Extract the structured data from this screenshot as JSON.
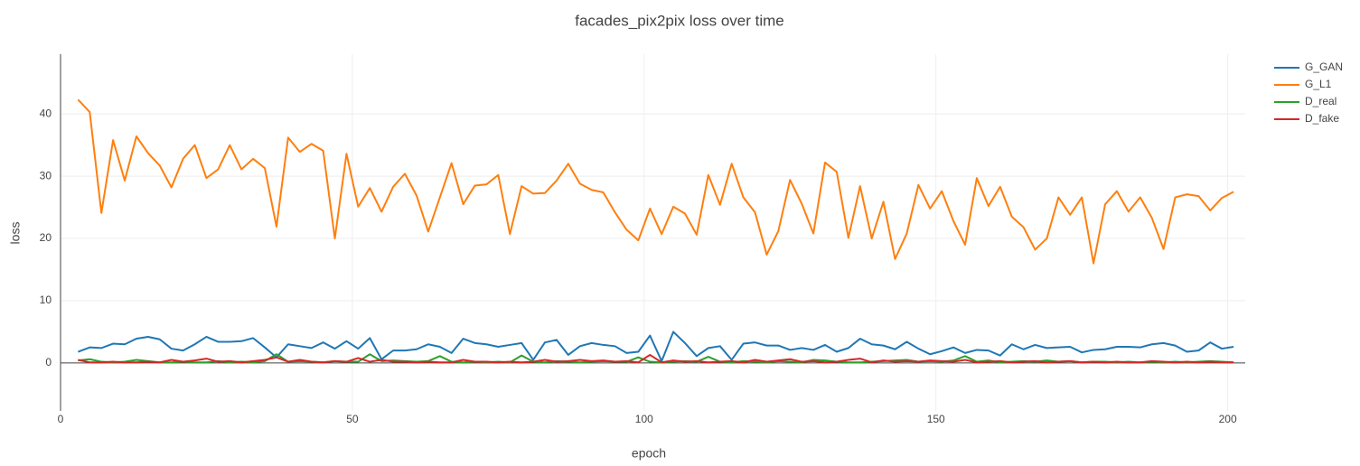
{
  "chart_data": {
    "type": "line",
    "title": "facades_pix2pix loss over time",
    "x_label": "epoch",
    "y_label": "loss",
    "x": [
      3,
      5,
      7,
      9,
      11,
      13,
      15,
      17,
      19,
      21,
      23,
      25,
      27,
      29,
      31,
      33,
      35,
      37,
      39,
      41,
      43,
      45,
      47,
      49,
      51,
      53,
      55,
      57,
      59,
      61,
      63,
      65,
      67,
      69,
      71,
      73,
      75,
      77,
      79,
      81,
      83,
      85,
      87,
      89,
      91,
      93,
      95,
      97,
      99,
      101,
      103,
      105,
      107,
      109,
      111,
      113,
      115,
      117,
      119,
      121,
      123,
      125,
      127,
      129,
      131,
      133,
      135,
      137,
      139,
      141,
      143,
      145,
      147,
      149,
      151,
      153,
      155,
      157,
      159,
      161,
      163,
      165,
      167,
      169,
      171,
      173,
      175,
      177,
      179,
      181,
      183,
      185,
      187,
      189,
      191,
      193,
      195,
      197,
      199,
      201
    ],
    "series": [
      {
        "name": "G_GAN",
        "color": "#1f77b4",
        "values": [
          1.8,
          2.5,
          2.4,
          3.1,
          3.0,
          3.9,
          4.2,
          3.8,
          2.3,
          2.0,
          3.0,
          4.2,
          3.4,
          3.4,
          3.5,
          4.0,
          2.5,
          0.9,
          3.0,
          2.7,
          2.4,
          3.3,
          2.3,
          3.5,
          2.3,
          4.0,
          0.6,
          2.0,
          2.0,
          2.2,
          3.0,
          2.6,
          1.6,
          3.9,
          3.2,
          3.0,
          2.6,
          2.9,
          3.2,
          0.5,
          3.3,
          3.7,
          1.3,
          2.7,
          3.2,
          2.9,
          2.7,
          1.6,
          1.8,
          4.4,
          0.3,
          5.0,
          3.2,
          1.1,
          2.4,
          2.7,
          0.5,
          3.1,
          3.3,
          2.8,
          2.8,
          2.1,
          2.4,
          2.1,
          2.9,
          1.8,
          2.4,
          3.9,
          3.0,
          2.8,
          2.2,
          3.4,
          2.3,
          1.4,
          1.9,
          2.5,
          1.6,
          2.1,
          2.0,
          1.2,
          3.0,
          2.2,
          2.9,
          2.4,
          2.5,
          2.6,
          1.7,
          2.1,
          2.2,
          2.6,
          2.6,
          2.5,
          3.0,
          3.2,
          2.8,
          1.8,
          2.0,
          3.3,
          2.3,
          2.6
        ]
      },
      {
        "name": "G_L1",
        "color": "#ff7f0e",
        "values": [
          42.3,
          40.3,
          24.1,
          35.8,
          29.3,
          36.4,
          33.7,
          31.7,
          28.2,
          32.8,
          35.0,
          29.7,
          31.1,
          35.0,
          31.1,
          32.8,
          31.3,
          21.9,
          36.2,
          33.9,
          35.2,
          34.1,
          20.0,
          33.6,
          25.1,
          28.1,
          24.3,
          28.3,
          30.4,
          26.9,
          21.1,
          26.6,
          32.1,
          25.5,
          28.5,
          28.7,
          30.2,
          20.7,
          28.4,
          27.2,
          27.3,
          29.3,
          32.0,
          28.8,
          27.8,
          27.4,
          24.2,
          21.4,
          19.7,
          24.8,
          20.7,
          25.1,
          24.0,
          20.6,
          30.2,
          25.4,
          32.0,
          26.6,
          24.2,
          17.4,
          21.2,
          29.4,
          25.6,
          20.8,
          32.2,
          30.7,
          20.1,
          28.4,
          20.0,
          25.9,
          16.7,
          20.8,
          28.6,
          24.8,
          27.6,
          22.8,
          19.0,
          29.7,
          25.2,
          28.3,
          23.5,
          21.8,
          18.2,
          20.0,
          26.6,
          23.8,
          26.6,
          16.0,
          25.5,
          27.6,
          24.3,
          26.6,
          23.3,
          18.3,
          26.6,
          27.1,
          26.8,
          24.5,
          26.5,
          27.5
        ]
      },
      {
        "name": "D_real",
        "color": "#2ca02c",
        "values": [
          0.4,
          0.6,
          0.2,
          0.1,
          0.2,
          0.5,
          0.3,
          0.1,
          0.1,
          0.2,
          0.1,
          0.1,
          0.3,
          0.1,
          0.2,
          0.1,
          0.3,
          1.4,
          0.2,
          0.3,
          0.2,
          0.1,
          0.3,
          0.2,
          0.2,
          1.4,
          0.3,
          0.4,
          0.3,
          0.2,
          0.3,
          1.1,
          0.2,
          0.1,
          0.2,
          0.1,
          0.2,
          0.1,
          1.2,
          0.2,
          0.1,
          0.3,
          0.2,
          0.1,
          0.2,
          0.3,
          0.2,
          0.2,
          0.9,
          0.2,
          0.1,
          0.2,
          0.3,
          0.2,
          1.0,
          0.2,
          0.1,
          0.3,
          0.2,
          0.1,
          0.3,
          0.2,
          0.1,
          0.5,
          0.4,
          0.2,
          0.1,
          0.1,
          0.2,
          0.3,
          0.4,
          0.5,
          0.2,
          0.3,
          0.2,
          0.4,
          1.1,
          0.2,
          0.4,
          0.1,
          0.2,
          0.3,
          0.2,
          0.4,
          0.2,
          0.3,
          0.1,
          0.2,
          0.2,
          0.1,
          0.2,
          0.1,
          0.2,
          0.1,
          0.2,
          0.1,
          0.2,
          0.3,
          0.2,
          0.1
        ]
      },
      {
        "name": "D_fake",
        "color": "#d62728",
        "values": [
          0.5,
          0.1,
          0.1,
          0.2,
          0.1,
          0.1,
          0.2,
          0.1,
          0.5,
          0.2,
          0.4,
          0.7,
          0.2,
          0.3,
          0.1,
          0.3,
          0.5,
          0.9,
          0.2,
          0.5,
          0.2,
          0.1,
          0.3,
          0.2,
          0.8,
          0.2,
          0.5,
          0.2,
          0.2,
          0.1,
          0.2,
          0.1,
          0.1,
          0.5,
          0.2,
          0.2,
          0.1,
          0.2,
          0.1,
          0.2,
          0.5,
          0.2,
          0.3,
          0.5,
          0.3,
          0.4,
          0.2,
          0.3,
          0.1,
          1.3,
          0.1,
          0.4,
          0.2,
          0.3,
          0.1,
          0.2,
          0.3,
          0.1,
          0.5,
          0.2,
          0.4,
          0.6,
          0.2,
          0.3,
          0.1,
          0.2,
          0.5,
          0.7,
          0.1,
          0.4,
          0.2,
          0.3,
          0.2,
          0.4,
          0.3,
          0.2,
          0.5,
          0.1,
          0.2,
          0.3,
          0.1,
          0.2,
          0.3,
          0.1,
          0.2,
          0.3,
          0.1,
          0.2,
          0.1,
          0.2,
          0.1,
          0.1,
          0.3,
          0.2,
          0.1,
          0.2,
          0.1,
          0.2,
          0.1,
          0.1
        ]
      }
    ],
    "xlim": [
      0,
      203
    ],
    "xticks": [
      0,
      50,
      100,
      150,
      200
    ],
    "ylim": [
      -7.7,
      49.6
    ],
    "yticks": [
      0,
      10,
      20,
      30,
      40
    ],
    "grid": true,
    "legend": "right"
  }
}
